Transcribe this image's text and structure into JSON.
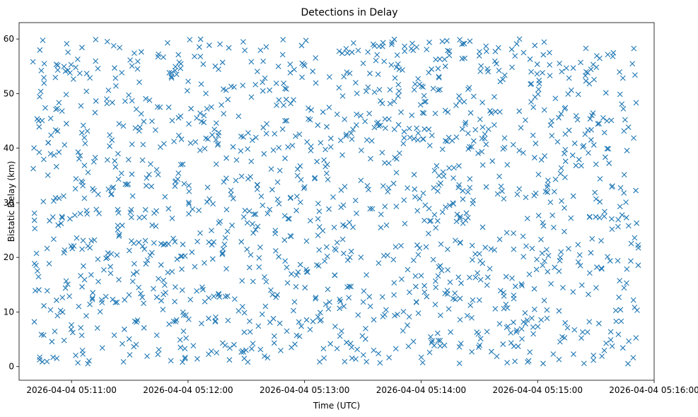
{
  "chart_data": {
    "type": "scatter",
    "title": "Detections in Delay",
    "xlabel": "Time (UTC)",
    "ylabel": "Bistatic Delay (km)",
    "marker": "x",
    "color": "#1f77b4",
    "grid": false,
    "legend": "none",
    "x_start": "2026-04-04 05:10:40",
    "x_end": "2026-04-04 05:15:52",
    "xlim": [
      "2026-04-04 05:10:33",
      "2026-04-04 05:16:00"
    ],
    "ylim": [
      -2.5,
      63
    ],
    "x_ticks": [
      "2026-04-04 05:11:00",
      "2026-04-04 05:12:00",
      "2026-04-04 05:13:00",
      "2026-04-04 05:14:00",
      "2026-04-04 05:15:00",
      "2026-04-04 05:16:00"
    ],
    "y_ticks": [
      0,
      10,
      20,
      30,
      40,
      50,
      60
    ],
    "point_count": 1500,
    "y_range": [
      0.5,
      60
    ]
  }
}
